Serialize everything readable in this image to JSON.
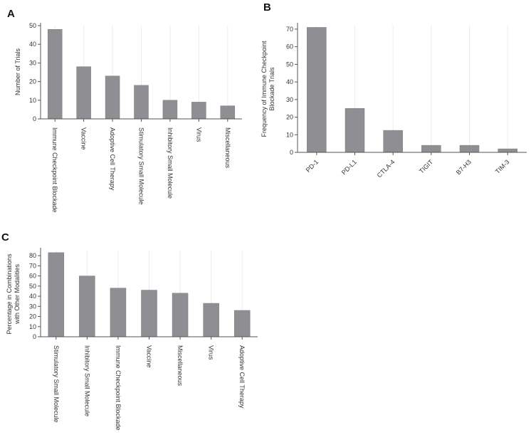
{
  "chart_data": [
    {
      "panel": "A",
      "type": "bar",
      "title": "",
      "xlabel": "",
      "ylabel": "Number of Trials",
      "ylim": [
        0,
        50
      ],
      "yticks": [
        0,
        10,
        20,
        30,
        40,
        50
      ],
      "categories": [
        "Immune Checkpoint Blockade",
        "Vaccine",
        "Adoptive Cell Therapy",
        "Stimulatory Small Molecule",
        "Inhibitory Small Molecule",
        "Virus",
        "Miscellaneous"
      ],
      "values": [
        48,
        28,
        23,
        18,
        10,
        9,
        7
      ],
      "grid": "vertical",
      "bar_color": "#8e8e93"
    },
    {
      "panel": "B",
      "type": "bar",
      "title": "",
      "xlabel": "",
      "ylabel_lines": [
        "Frequency of Immune Checkpoint",
        "Blockade Trials"
      ],
      "ylim": [
        0,
        72
      ],
      "yticks": [
        0,
        10,
        20,
        30,
        40,
        50,
        60,
        70
      ],
      "categories": [
        "PD-1",
        "PD-L1",
        "CTLA-4",
        "TIGIT",
        "B7-H3",
        "TIM-3"
      ],
      "values": [
        71,
        25,
        12.5,
        4,
        4,
        2
      ],
      "grid": "vertical",
      "bar_color": "#8e8e93"
    },
    {
      "panel": "C",
      "type": "bar",
      "title": "",
      "xlabel": "",
      "ylabel_lines": [
        "Percentage in Combinations",
        "with Other Modalities"
      ],
      "ylim": [
        0,
        85
      ],
      "yticks": [
        0,
        10,
        20,
        30,
        40,
        50,
        60,
        70,
        80
      ],
      "categories": [
        "Stimulatory Small Molecule",
        "Inhibitory Small Molecule",
        "Immune Checkpoint Blockade",
        "Vaccine",
        "Miscellaneous",
        "Virus",
        "Adoptive Cell Therapy"
      ],
      "values": [
        83,
        60,
        48,
        46,
        43,
        33,
        26
      ],
      "grid": "vertical",
      "bar_color": "#8e8e93"
    }
  ]
}
